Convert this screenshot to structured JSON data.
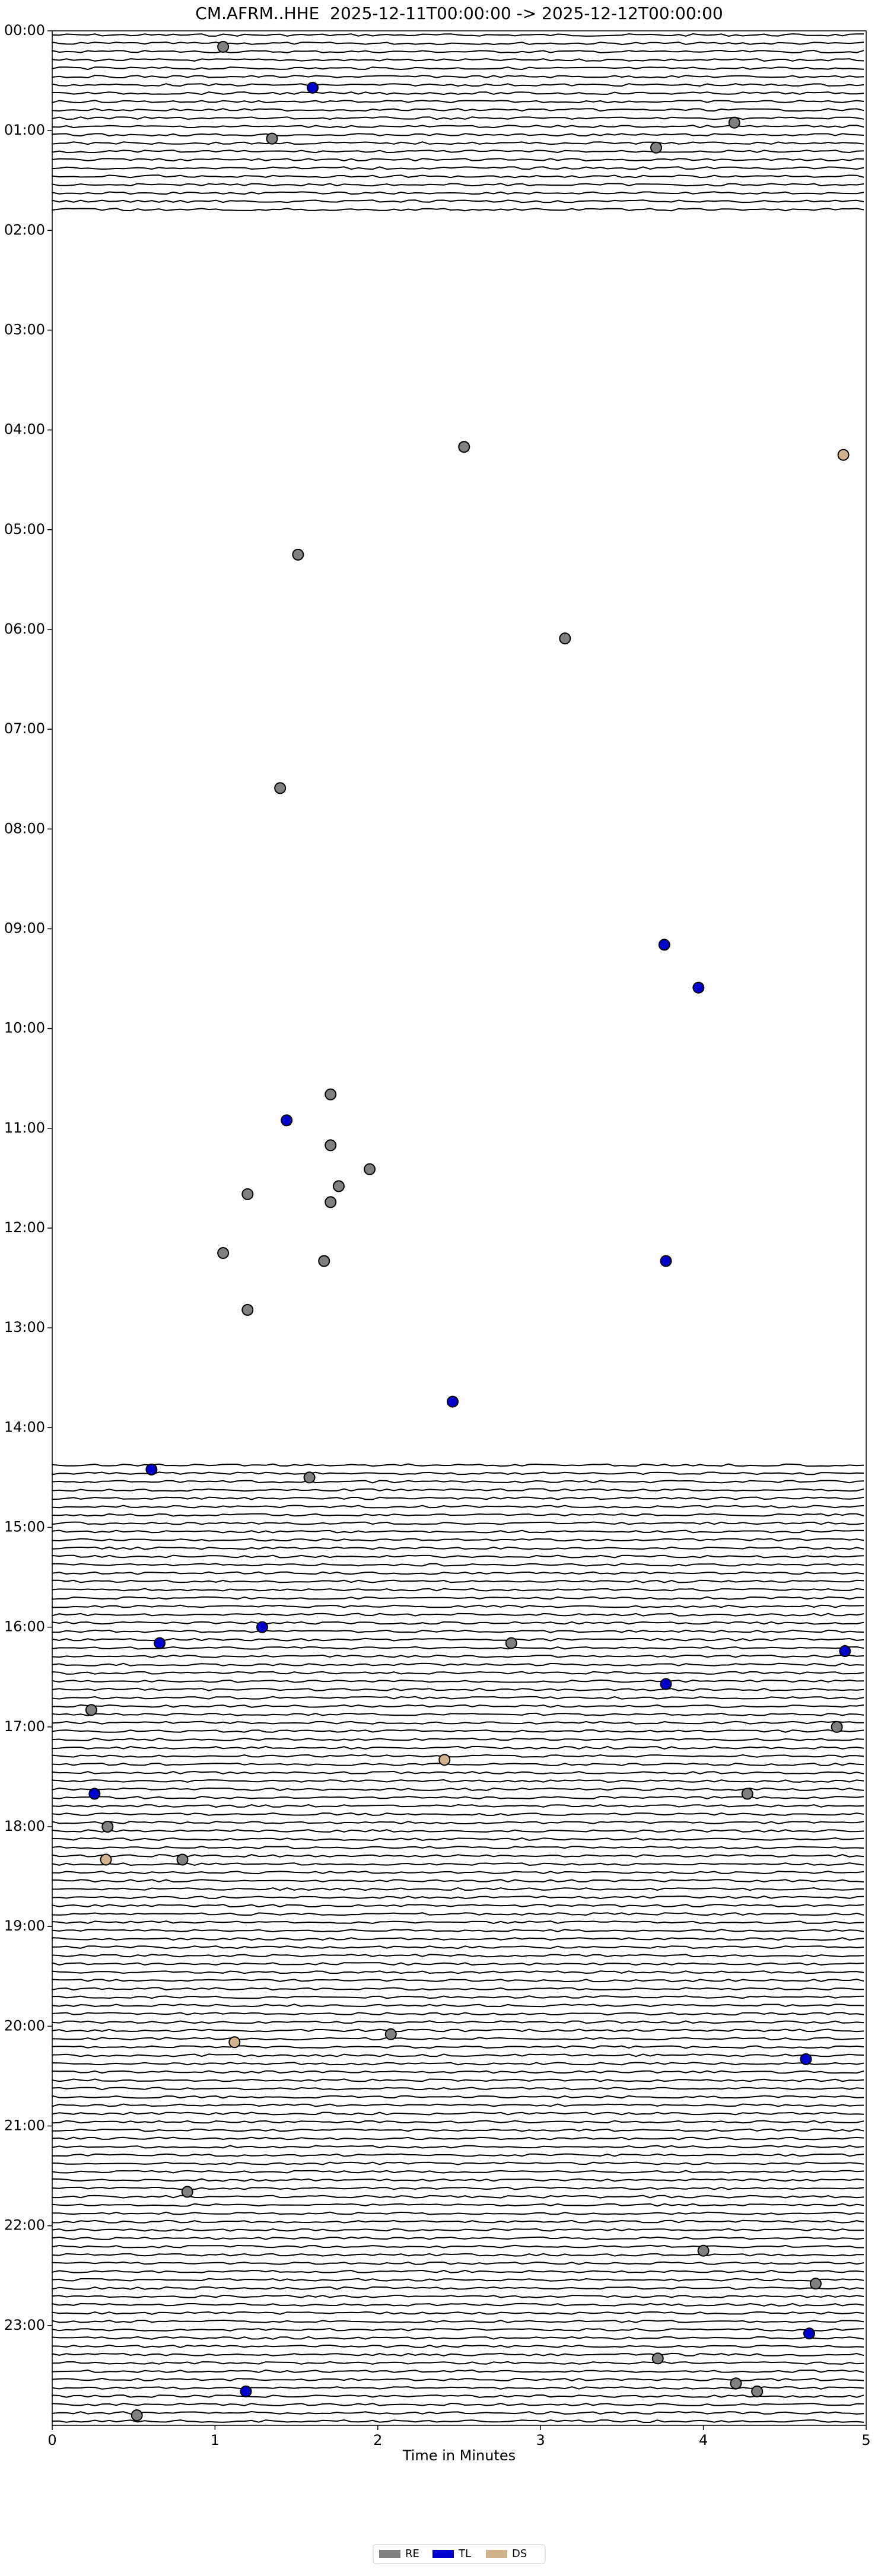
{
  "chart_data": {
    "type": "scatter",
    "title": "CM.AFRM..HHE  2025-12-11T00:00:00 -> 2025-12-12T00:00:00",
    "x_label": "Time in Minutes",
    "xlim": [
      0,
      5
    ],
    "xticks": [
      0,
      1,
      2,
      3,
      4,
      5
    ],
    "ylim": [
      0,
      24
    ],
    "y_inverted": true,
    "yticks": [
      {
        "value": 0,
        "label": "00:00"
      },
      {
        "value": 1,
        "label": "01:00"
      },
      {
        "value": 2,
        "label": "02:00"
      },
      {
        "value": 3,
        "label": "03:00"
      },
      {
        "value": 4,
        "label": "04:00"
      },
      {
        "value": 5,
        "label": "05:00"
      },
      {
        "value": 6,
        "label": "06:00"
      },
      {
        "value": 7,
        "label": "07:00"
      },
      {
        "value": 8,
        "label": "08:00"
      },
      {
        "value": 9,
        "label": "09:00"
      },
      {
        "value": 10,
        "label": "10:00"
      },
      {
        "value": 11,
        "label": "11:00"
      },
      {
        "value": 12,
        "label": "12:00"
      },
      {
        "value": 13,
        "label": "13:00"
      },
      {
        "value": 14,
        "label": "14:00"
      },
      {
        "value": 15,
        "label": "15:00"
      },
      {
        "value": 16,
        "label": "16:00"
      },
      {
        "value": 17,
        "label": "17:00"
      },
      {
        "value": 18,
        "label": "18:00"
      },
      {
        "value": 19,
        "label": "19:00"
      },
      {
        "value": 20,
        "label": "20:00"
      },
      {
        "value": 21,
        "label": "21:00"
      },
      {
        "value": 22,
        "label": "22:00"
      },
      {
        "value": 23,
        "label": "23:00"
      }
    ],
    "legend": "bottom",
    "series": [
      {
        "name": "RE",
        "color": "#808080",
        "x": [
          1.05,
          4.19,
          1.35,
          3.71,
          2.53,
          1.51,
          3.15,
          1.4,
          1.71,
          1.71,
          1.95,
          1.76,
          1.2,
          1.71,
          1.05,
          1.67,
          1.2,
          1.58,
          2.82,
          0.24,
          4.82,
          4.27,
          0.34,
          0.8,
          2.08,
          0.83,
          4.0,
          4.69,
          3.72,
          4.2,
          4.33,
          0.52
        ],
        "values": [
          0.16,
          0.92,
          1.08,
          1.17,
          4.17,
          5.25,
          6.09,
          7.59,
          10.66,
          11.17,
          11.41,
          11.58,
          11.66,
          11.74,
          12.25,
          12.33,
          12.82,
          14.5,
          16.16,
          16.83,
          17.0,
          17.67,
          18.0,
          18.33,
          20.08,
          21.66,
          22.25,
          22.58,
          23.33,
          23.58,
          23.66,
          23.9
        ]
      },
      {
        "name": "TL",
        "color": "#0000cc",
        "x": [
          1.6,
          3.76,
          3.97,
          1.44,
          3.77,
          2.46,
          0.61,
          1.29,
          0.66,
          4.87,
          3.77,
          0.26,
          4.63,
          4.65,
          1.19
        ],
        "values": [
          0.57,
          9.16,
          9.59,
          10.92,
          12.33,
          13.74,
          14.42,
          16.0,
          16.16,
          16.24,
          16.57,
          17.67,
          20.33,
          23.08,
          23.66
        ]
      },
      {
        "name": "DS",
        "color": "#d2b48c",
        "x": [
          4.86,
          2.41,
          0.33,
          1.12
        ],
        "values": [
          4.25,
          17.33,
          18.33,
          20.16
        ]
      }
    ]
  }
}
